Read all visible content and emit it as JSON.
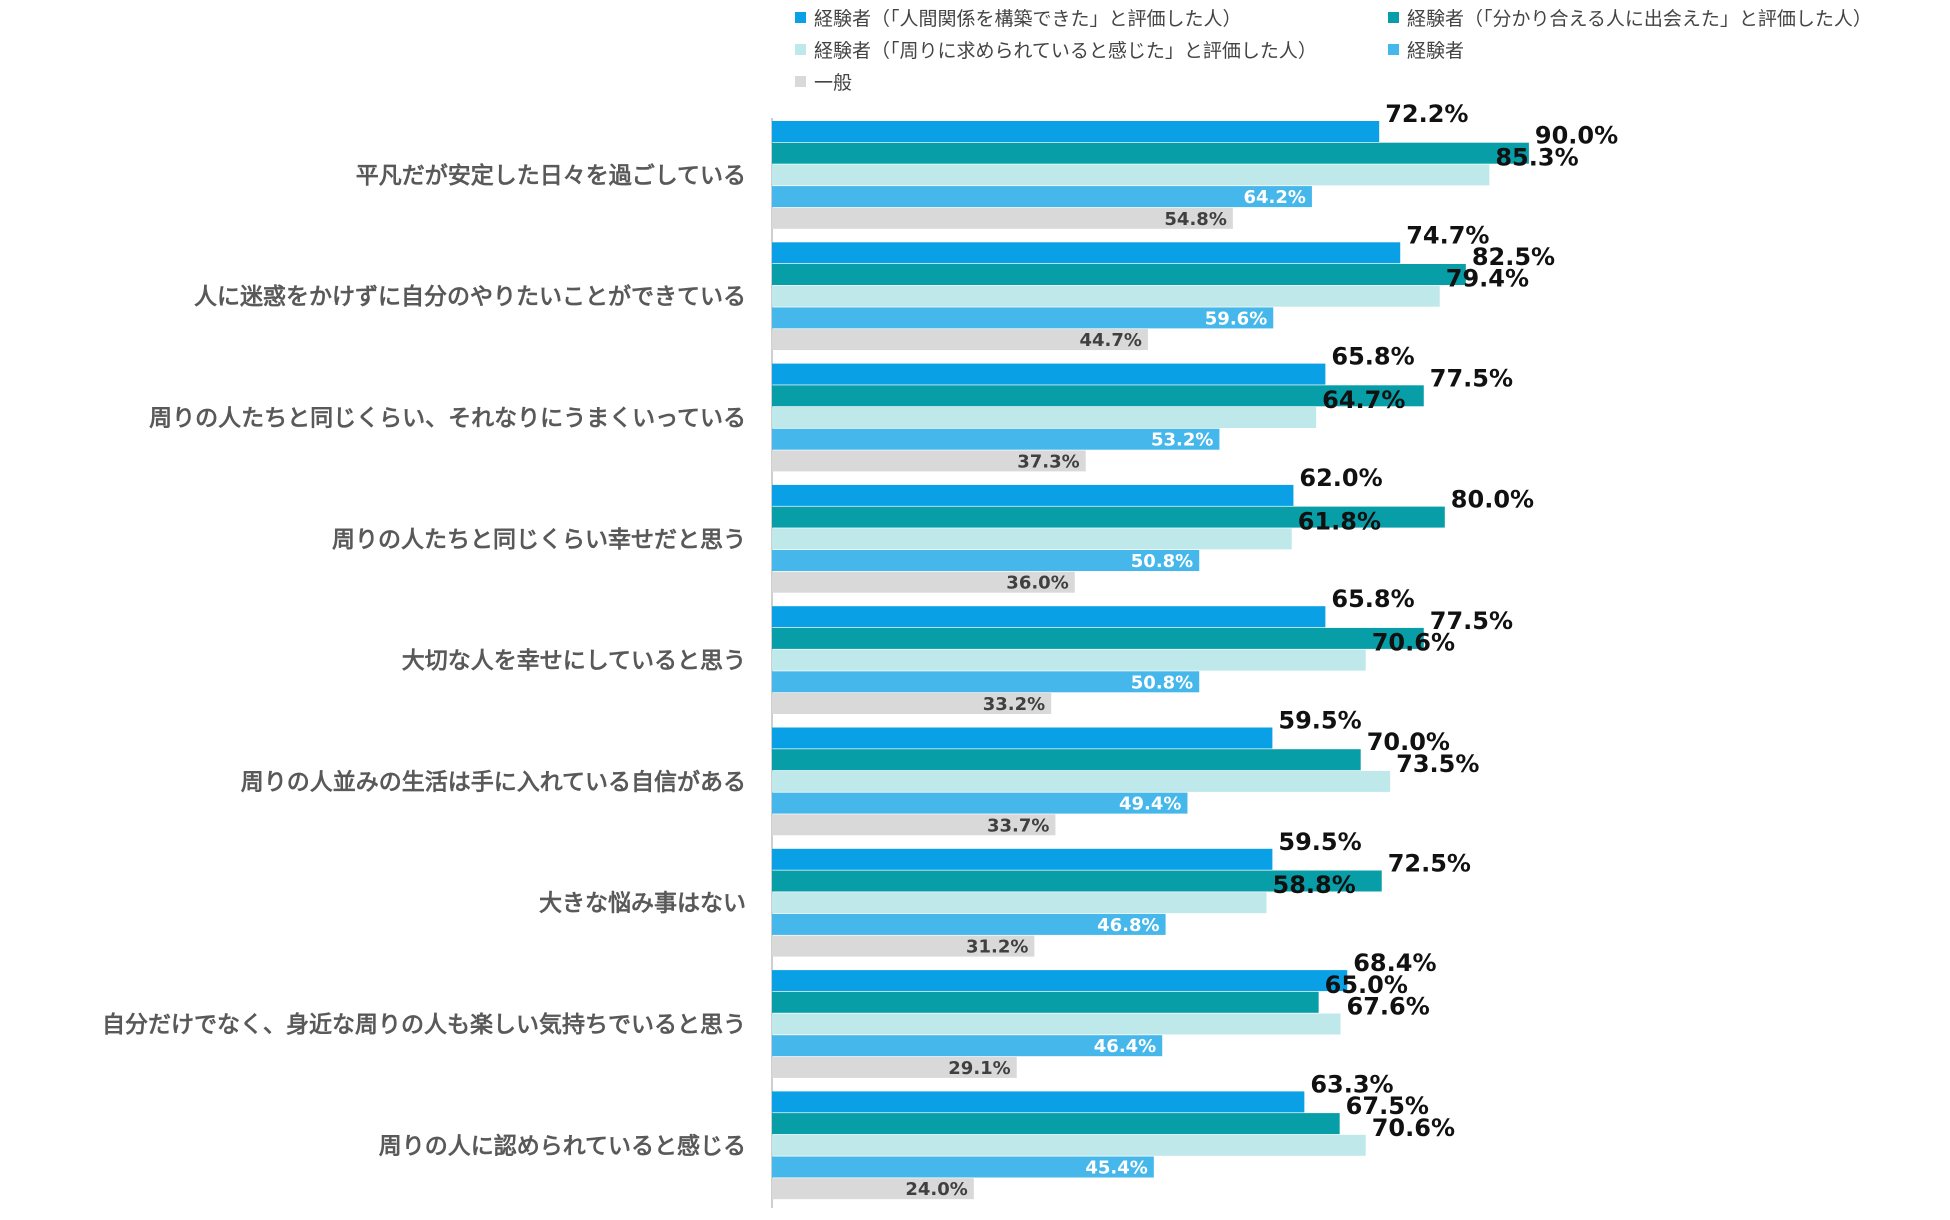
{
  "chart_data": {
    "type": "bar",
    "orientation": "horizontal",
    "title": "",
    "xlabel": "",
    "ylabel": "",
    "xlim": [
      0,
      100
    ],
    "grid": false,
    "legend_position": "top",
    "categories": [
      "平凡だが安定した日々を過ごしている",
      "人に迷惑をかけずに自分のやりたいことができている",
      "周りの人たちと同じくらい、それなりにうまくいっている",
      "周りの人たちと同じくらい幸せだと思う",
      "大切な人を幸せにしていると思う",
      "周りの人並みの生活は手に入れている自信がある",
      "大きな悩み事はない",
      "自分だけでなく、身近な周りの人も楽しい気持ちでいると思う",
      "周りの人に認められていると感じる"
    ],
    "series": [
      {
        "name": "経験者（「人間関係を構築できた」と評価した人）",
        "color": "#0aa0e6",
        "values": [
          72.2,
          74.7,
          65.8,
          62.0,
          65.8,
          59.5,
          59.5,
          68.4,
          63.3
        ],
        "labels": [
          "72.2%",
          "74.7%",
          "65.8%",
          "62.0%",
          "65.8%",
          "59.5%",
          "59.5%",
          "68.4%",
          "63.3%"
        ]
      },
      {
        "name": "経験者（「分かり合える人に出会えた」と評価した人）",
        "color": "#089ea8",
        "values": [
          90.0,
          82.5,
          77.5,
          80.0,
          77.5,
          70.0,
          72.5,
          65.0,
          67.5
        ],
        "labels": [
          "90.0%",
          "82.5%",
          "77.5%",
          "80.0%",
          "77.5%",
          "70.0%",
          "72.5%",
          "65.0%",
          "67.5%"
        ]
      },
      {
        "name": "経験者（「周りに求められていると感じた」と評価した人）",
        "color": "#bfe8ea",
        "values": [
          85.3,
          79.4,
          64.7,
          61.8,
          70.6,
          73.5,
          58.8,
          67.6,
          70.6
        ],
        "labels": [
          "85.3%",
          "79.4%",
          "64.7%",
          "61.8%",
          "70.6%",
          "73.5%",
          "58.8%",
          "67.6%",
          "70.6%"
        ]
      },
      {
        "name": "経験者",
        "color": "#45b7ea",
        "values": [
          64.2,
          59.6,
          53.2,
          50.8,
          50.8,
          49.4,
          46.8,
          46.4,
          45.4
        ],
        "labels": [
          "64.2%",
          "59.6%",
          "53.2%",
          "50.8%",
          "50.8%",
          "49.4%",
          "46.8%",
          "46.4%",
          "45.4%"
        ]
      },
      {
        "name": "一般",
        "color": "#d9d9d9",
        "values": [
          54.8,
          44.7,
          37.3,
          36.0,
          33.2,
          33.7,
          31.2,
          29.1,
          24.0
        ],
        "labels": [
          "54.8%",
          "44.7%",
          "37.3%",
          "36.0%",
          "33.2%",
          "33.7%",
          "31.2%",
          "29.1%",
          "24.0%"
        ]
      }
    ]
  }
}
